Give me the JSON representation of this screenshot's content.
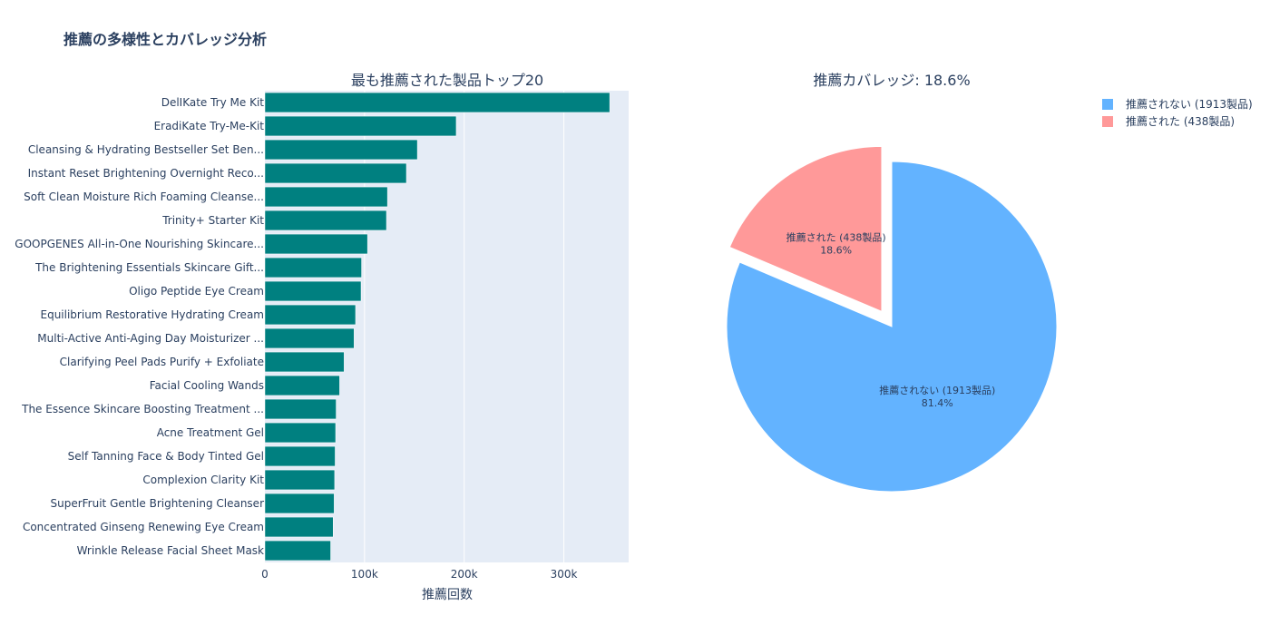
{
  "page_title": "推薦の多様性とカバレッジ分析",
  "colors": {
    "bar": "#008080",
    "plot_bg": "#e5ecf6",
    "grid": "#ffffff",
    "pie_not": "#63b3ff",
    "pie_rec": "#ff9999",
    "text": "#2a3f5f"
  },
  "chart_data": [
    {
      "type": "bar",
      "orientation": "horizontal",
      "title": "最も推薦された製品トップ20",
      "xlabel": "推薦回数",
      "ylabel": "",
      "xlim": [
        0,
        365000
      ],
      "xticks": [
        0,
        100000,
        200000,
        300000
      ],
      "xtick_labels": [
        "0",
        "100k",
        "200k",
        "300k"
      ],
      "categories": [
        "DelIKate Try Me Kit",
        "EradiKate Try-Me-Kit",
        "Cleansing & Hydrating Bestseller Set Ben...",
        "Instant Reset Brightening Overnight Reco...",
        "Soft Clean Moisture Rich Foaming Cleanse...",
        "Trinity+ Starter Kit",
        "GOOPGENES All-in-One Nourishing Skincare...",
        "The Brightening Essentials Skincare Gift...",
        "Oligo Peptide Eye Cream",
        "Equilibrium Restorative Hydrating Cream",
        "Multi-Active Anti-Aging Day Moisturizer ...",
        "Clarifying Peel Pads Purify + Exfoliate",
        "Facial Cooling Wands",
        "The Essence Skincare Boosting Treatment ...",
        "Acne Treatment Gel",
        "Self Tanning Face & Body Tinted Gel",
        "Complexion Clarity Kit",
        "SuperFruit Gentle Brightening Cleanser",
        "Concentrated Ginseng Renewing Eye Cream",
        "Wrinkle Release Facial Sheet Mask"
      ],
      "values": [
        346000,
        192000,
        153000,
        142000,
        123000,
        122000,
        103000,
        97000,
        96500,
        91000,
        89500,
        79500,
        75000,
        71500,
        71000,
        70500,
        70000,
        69500,
        68500,
        66000
      ]
    },
    {
      "type": "pie",
      "title": "推薦カバレッジ: 18.6%",
      "slices": [
        {
          "label": "推薦されない (1913製品)",
          "value": 1913,
          "percent": "81.4%",
          "pulled": false
        },
        {
          "label": "推薦された (438製品)",
          "value": 438,
          "percent": "18.6%",
          "pulled": true
        }
      ],
      "legend_position": "top-right"
    }
  ]
}
